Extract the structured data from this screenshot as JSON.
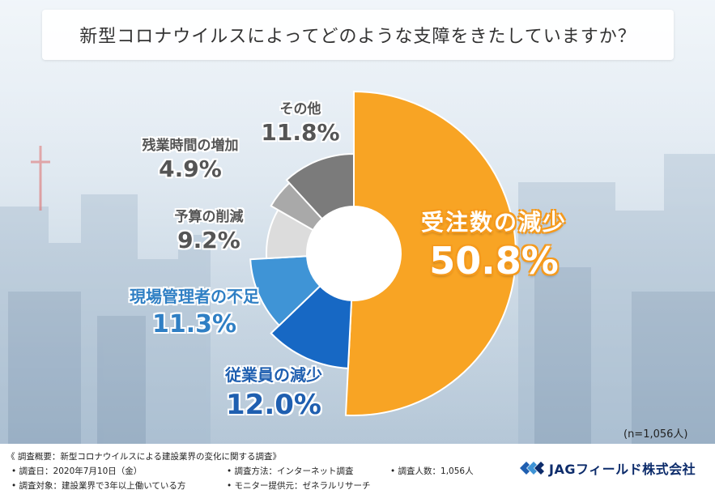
{
  "title": "新型コロナウイルスによってどのような支障をきたしていますか？",
  "note": "(n=1,056人)",
  "colors": {
    "orange": "#f8a424",
    "dark_blue": "#1768c4",
    "mid_blue": "#3f94d6",
    "light_gray": "#dcdcdc",
    "gray": "#a9a9a9",
    "dark_gray": "#7b7b7b"
  },
  "chart_data": {
    "type": "pie",
    "style": "half-donut",
    "slices": [
      {
        "label": "受注数の減少",
        "value": 50.8,
        "display": "50.8%",
        "color": "#f8a424"
      },
      {
        "label": "従業員の減少",
        "value": 12.0,
        "display": "12.0%",
        "color": "#1768c4"
      },
      {
        "label": "現場管理者の不足",
        "value": 11.3,
        "display": "11.3%",
        "color": "#3f94d6"
      },
      {
        "label": "予算の削減",
        "value": 9.2,
        "display": "9.2%",
        "color": "#dcdcdc"
      },
      {
        "label": "残業時間の増加",
        "value": 4.9,
        "display": "4.9%",
        "color": "#a9a9a9"
      },
      {
        "label": "その他",
        "value": 11.8,
        "display": "11.8%",
        "color": "#7b7b7b"
      }
    ]
  },
  "footer": {
    "summary": "《 調査概要：新型コロナウイルスによる建設業界の変化に関する調査》",
    "date": "• 調査日：2020年7月10日（金）",
    "method": "• 調査方法：インターネット調査",
    "count": "• 調査人数：1,056人",
    "target": "• 調査対象：建設業界で3年以上働いている方",
    "provider": "• モニター提供元：ゼネラルリサーチ",
    "company": "JAGフィールド株式会社"
  }
}
